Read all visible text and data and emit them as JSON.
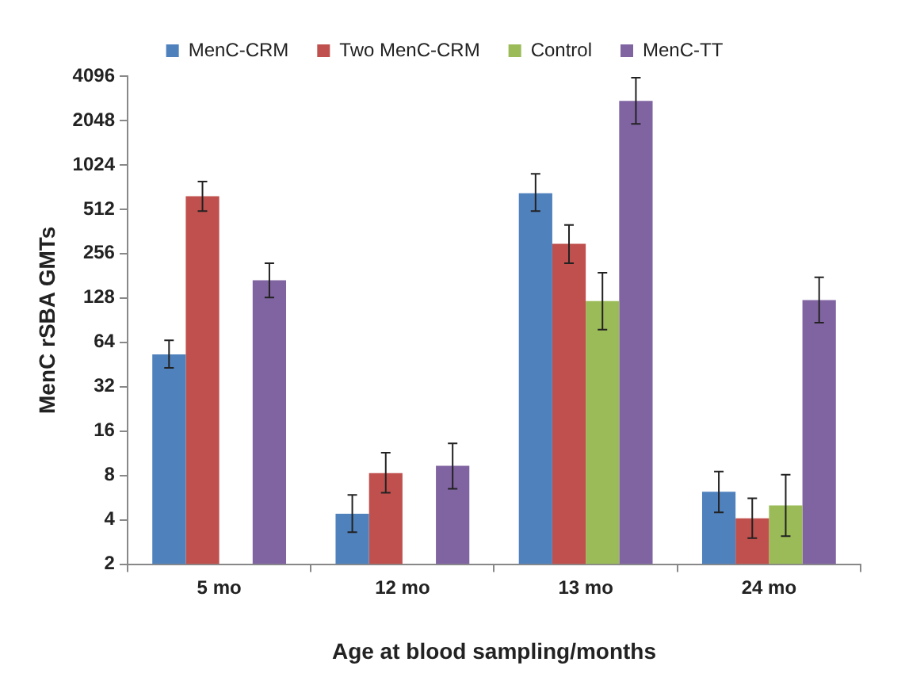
{
  "chart_data": {
    "type": "bar",
    "xlabel": "Age at blood sampling/months",
    "ylabel": "MenC rSBA GMTs",
    "categories": [
      "5 mo",
      "12 mo",
      "13 mo",
      "24 mo"
    ],
    "log": true,
    "ylim": [
      2,
      4096
    ],
    "yticks": [
      2,
      4,
      8,
      16,
      32,
      64,
      128,
      256,
      512,
      1024,
      2048,
      4096
    ],
    "grid": false,
    "legend": "top",
    "series": [
      {
        "name": "MenC-CRM",
        "color": "#4f81bd",
        "values": [
          53,
          4.4,
          657,
          6.2
        ],
        "errors": [
          [
            43,
            66
          ],
          [
            3.3,
            5.9
          ],
          [
            497,
            891
          ],
          [
            4.5,
            8.5
          ]
        ]
      },
      {
        "name": "Two MenC-CRM",
        "color": "#c0504d",
        "values": [
          627,
          8.3,
          298,
          4.1
        ],
        "errors": [
          [
            497,
            788
          ],
          [
            6.1,
            11.4
          ],
          [
            220,
            400
          ],
          [
            3.0,
            5.6
          ]
        ]
      },
      {
        "name": "Control",
        "color": "#9bbb59",
        "values": [
          null,
          null,
          122,
          5.0
        ],
        "errors": [
          null,
          null,
          [
            78,
            190
          ],
          [
            3.1,
            8.1
          ]
        ]
      },
      {
        "name": "MenC-TT",
        "color": "#8064a2",
        "values": [
          169,
          9.3,
          2780,
          124
        ],
        "errors": [
          [
            129,
            220
          ],
          [
            6.5,
            13.2
          ],
          [
            1940,
            4000
          ],
          [
            87,
            177
          ]
        ]
      }
    ]
  }
}
